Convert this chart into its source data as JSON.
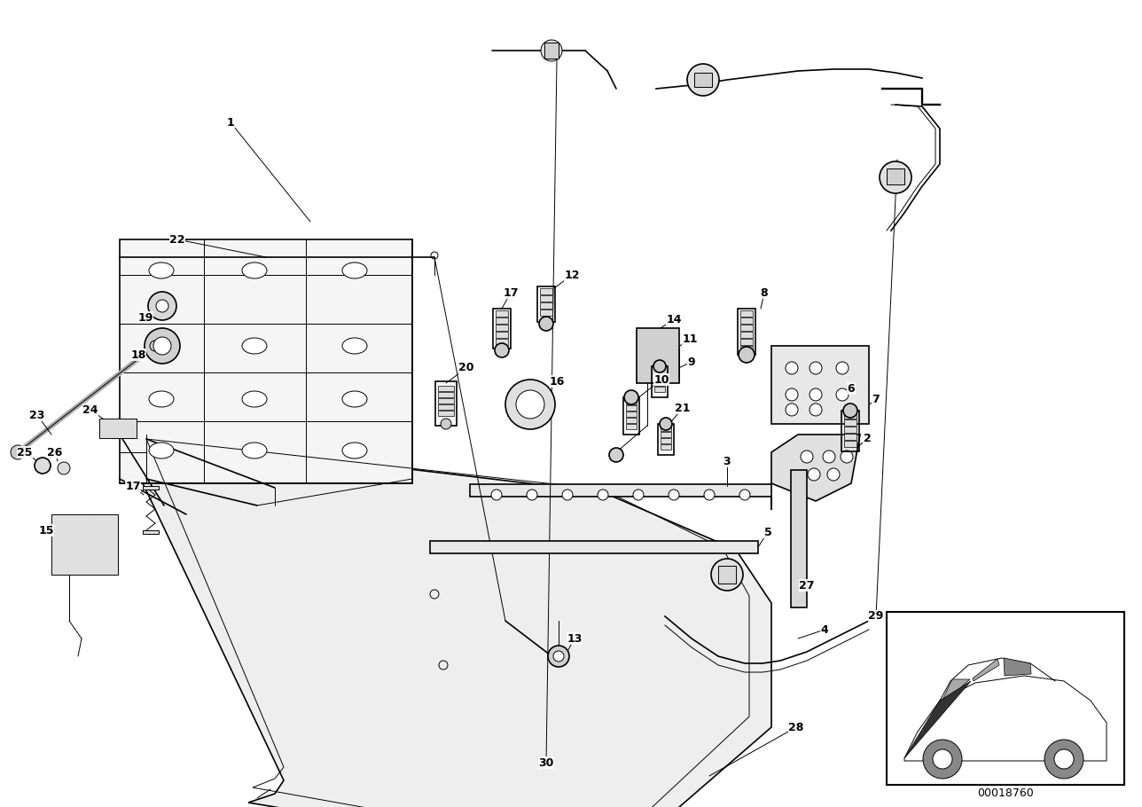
{
  "bg_color": "#ffffff",
  "line_color": "#000000",
  "fig_width": 12.88,
  "fig_height": 9.1,
  "part_number_label": "00018760",
  "dpi": 100
}
